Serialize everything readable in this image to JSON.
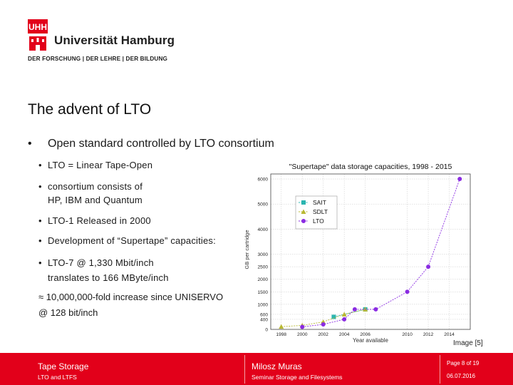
{
  "logo": {
    "mark_text": "UHH",
    "name": "Universität Hamburg",
    "tagline": "DER FORSCHUNG | DER LEHRE | DER BILDUNG"
  },
  "slide": {
    "title": "The advent of LTO",
    "bullet_main": "Open standard controlled by LTO consortium",
    "sub_bullets": [
      {
        "line1": "LTO = Linear Tape-Open",
        "line2": ""
      },
      {
        "line1": "consortium consists of",
        "line2": "HP, IBM and Quantum"
      },
      {
        "line1": "LTO-1 Released in 2000",
        "line2": ""
      },
      {
        "line1": "Development of “Supertape” capacities:",
        "line2": ""
      },
      {
        "line1": "LTO-7 @ 1,330 Mbit/inch",
        "line2": "translates to 166 MByte/inch"
      }
    ],
    "note_line1": "≈ 10,000,000-fold increase since UNISERVO",
    "note_line2": "@ 128 bit/inch",
    "image_credit": "Image [5]"
  },
  "footer": {
    "course_title": "Tape Storage",
    "course_subtitle": "LTO and LTFS",
    "author": "Milosz Muras",
    "seminar": "Seminar Storage and Filesystems",
    "page": "Page 8 of 19",
    "date": "06.07.2016"
  },
  "colors": {
    "brand_red": "#e2001a",
    "sait": "#2bb5b0",
    "sdlt": "#b8b832",
    "lto": "#8a2be2"
  },
  "chart_data": {
    "type": "line",
    "title": "\"Supertape\" data storage capacities, 1998 - 2015",
    "xlabel": "Year available",
    "ylabel": "GB per cartridge",
    "xlim": [
      1997,
      2016
    ],
    "ylim": [
      0,
      6200
    ],
    "xticks": [
      1998,
      2000,
      2002,
      2004,
      2006,
      2010,
      2012,
      2014
    ],
    "yticks": [
      0,
      400,
      600,
      1000,
      1500,
      2000,
      2500,
      3000,
      4000,
      5000,
      6000
    ],
    "grid": true,
    "legend_position": "upper-left",
    "series": [
      {
        "name": "SAIT",
        "marker": "square",
        "color": "#2bb5b0",
        "x": [
          2003,
          2006
        ],
        "y": [
          500,
          800
        ]
      },
      {
        "name": "SDLT",
        "marker": "triangle",
        "color": "#b8b832",
        "x": [
          1998,
          2000,
          2002,
          2004,
          2006
        ],
        "y": [
          110,
          160,
          300,
          600,
          800
        ]
      },
      {
        "name": "LTO",
        "marker": "circle",
        "color": "#8a2be2",
        "x": [
          2000,
          2002,
          2004,
          2005,
          2007,
          2010,
          2012,
          2015
        ],
        "y": [
          100,
          200,
          400,
          800,
          800,
          1500,
          2500,
          6000
        ]
      }
    ]
  }
}
